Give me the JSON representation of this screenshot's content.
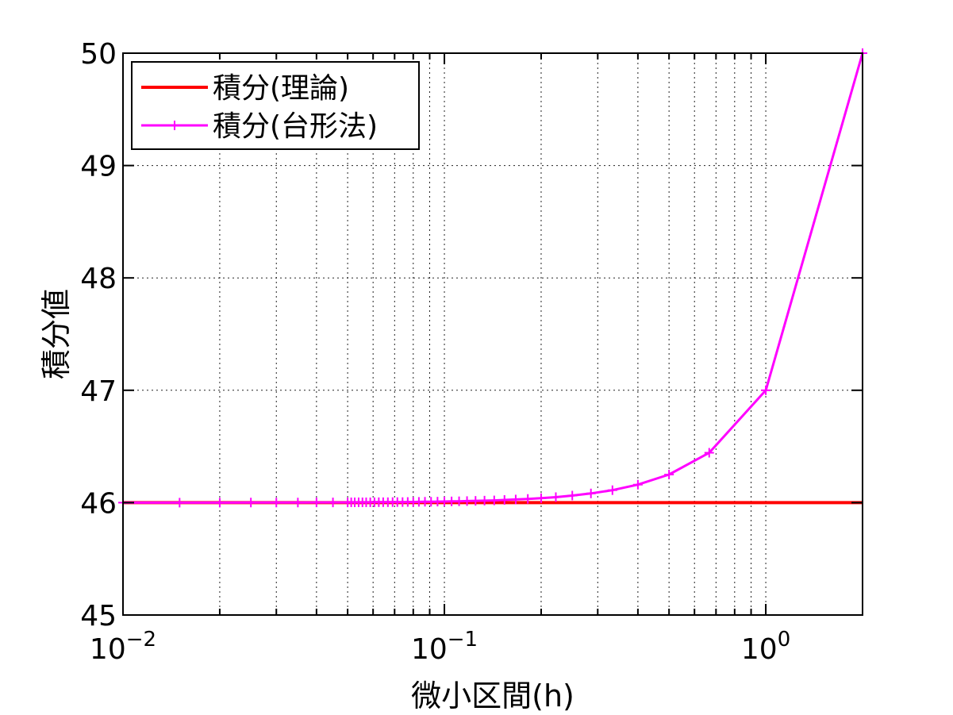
{
  "chart_data": {
    "type": "line",
    "xlabel": "微小区間(h)",
    "ylabel": "積分値",
    "x_scale": "log",
    "xlim": [
      0.01,
      2
    ],
    "ylim": [
      45,
      50
    ],
    "grid": true,
    "legend_position": "top-left",
    "x_ticks": [
      {
        "value": 0.01,
        "base": "10",
        "exp": "−2"
      },
      {
        "value": 0.1,
        "base": "10",
        "exp": "−1"
      },
      {
        "value": 1,
        "base": "10",
        "exp": "0"
      }
    ],
    "y_ticks": [
      "45",
      "46",
      "47",
      "48",
      "49",
      "50"
    ],
    "series": [
      {
        "name": "積分(理論)",
        "color": "#ff0000",
        "marker": "none",
        "x": [
          0.01,
          2
        ],
        "y": [
          46,
          46
        ]
      },
      {
        "name": "積分(台形法)",
        "color": "#ff00ff",
        "marker": "plus",
        "x": [
          2,
          1,
          0.6667,
          0.5,
          0.4,
          0.3333,
          0.2857,
          0.25,
          0.2222,
          0.2,
          0.1818,
          0.1667,
          0.1538,
          0.1429,
          0.1333,
          0.125,
          0.1176,
          0.1111,
          0.1053,
          0.1,
          0.0952,
          0.0909,
          0.087,
          0.0833,
          0.08,
          0.0769,
          0.0741,
          0.0714,
          0.069,
          0.0667,
          0.0645,
          0.0625,
          0.0606,
          0.0588,
          0.0571,
          0.0556,
          0.0541,
          0.0526,
          0.0513,
          0.05,
          0.045,
          0.04,
          0.035,
          0.03,
          0.025,
          0.02,
          0.015,
          0.01
        ],
        "y": [
          50,
          47,
          46.444,
          46.25,
          46.16,
          46.111,
          46.082,
          46.063,
          46.049,
          46.04,
          46.033,
          46.028,
          46.024,
          46.02,
          46.018,
          46.016,
          46.014,
          46.012,
          46.011,
          46.01,
          46.009,
          46.008,
          46.008,
          46.007,
          46.006,
          46.006,
          46.005,
          46.005,
          46.005,
          46.004,
          46.004,
          46.004,
          46.004,
          46.003,
          46.003,
          46.003,
          46.003,
          46.003,
          46.003,
          46.002,
          46.002,
          46.002,
          46.001,
          46.001,
          46.001,
          46,
          46,
          46
        ]
      }
    ]
  }
}
